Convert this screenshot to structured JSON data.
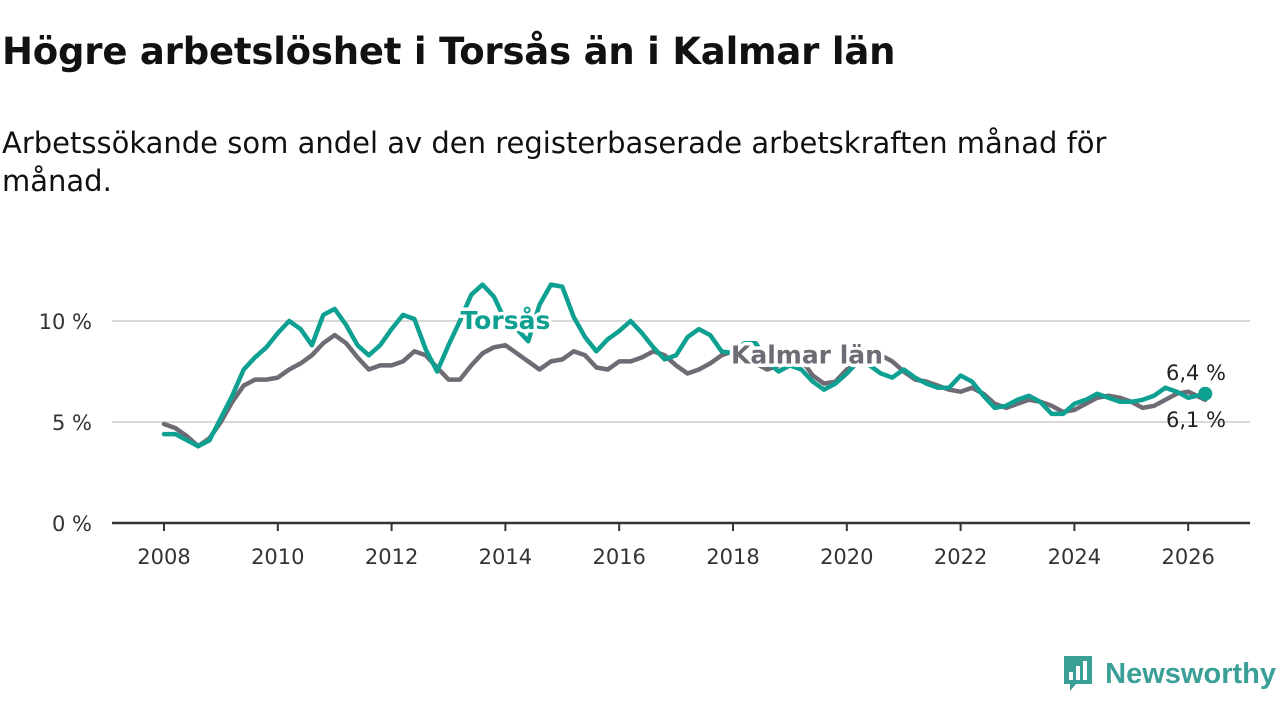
{
  "title": "Högre arbetslöshet i Torsås än i Kalmar län",
  "subtitle": "Arbetssökande som andel av den registerbaserade arbetskraften månad för månad.",
  "brand": {
    "name": "Newsworthy",
    "color": "#3a9f96"
  },
  "chart_data": {
    "type": "line",
    "ylim": [
      0,
      12
    ],
    "y_ticks": [
      {
        "value": 0,
        "label": "0 %"
      },
      {
        "value": 5,
        "label": "5 %"
      },
      {
        "value": 10,
        "label": "10 %"
      }
    ],
    "xlim": [
      2008.0,
      2026.3
    ],
    "x_ticks": [
      {
        "value": 2008,
        "label": "2008"
      },
      {
        "value": 2010,
        "label": "2010"
      },
      {
        "value": 2012,
        "label": "2012"
      },
      {
        "value": 2014,
        "label": "2014"
      },
      {
        "value": 2016,
        "label": "2016"
      },
      {
        "value": 2018,
        "label": "2018"
      },
      {
        "value": 2020,
        "label": "2020"
      },
      {
        "value": 2022,
        "label": "2022"
      },
      {
        "value": 2024,
        "label": "2024"
      },
      {
        "value": 2026,
        "label": "2026"
      }
    ],
    "grid": true,
    "series": [
      {
        "name": "Kalmar län",
        "color": "#6f6b74",
        "label_at": [
          2019.3,
          7.9
        ],
        "end_label": "6,1 %",
        "points": [
          [
            2008.0,
            4.9
          ],
          [
            2008.2,
            4.7
          ],
          [
            2008.4,
            4.3
          ],
          [
            2008.6,
            3.8
          ],
          [
            2008.8,
            4.2
          ],
          [
            2009.0,
            5.0
          ],
          [
            2009.2,
            6.0
          ],
          [
            2009.4,
            6.8
          ],
          [
            2009.6,
            7.1
          ],
          [
            2009.8,
            7.1
          ],
          [
            2010.0,
            7.2
          ],
          [
            2010.2,
            7.6
          ],
          [
            2010.4,
            7.9
          ],
          [
            2010.6,
            8.3
          ],
          [
            2010.8,
            8.9
          ],
          [
            2011.0,
            9.3
          ],
          [
            2011.2,
            8.9
          ],
          [
            2011.4,
            8.2
          ],
          [
            2011.6,
            7.6
          ],
          [
            2011.8,
            7.8
          ],
          [
            2012.0,
            7.8
          ],
          [
            2012.2,
            8.0
          ],
          [
            2012.4,
            8.5
          ],
          [
            2012.6,
            8.3
          ],
          [
            2012.8,
            7.7
          ],
          [
            2013.0,
            7.1
          ],
          [
            2013.2,
            7.1
          ],
          [
            2013.4,
            7.8
          ],
          [
            2013.6,
            8.4
          ],
          [
            2013.8,
            8.7
          ],
          [
            2014.0,
            8.8
          ],
          [
            2014.2,
            8.4
          ],
          [
            2014.4,
            8.0
          ],
          [
            2014.6,
            7.6
          ],
          [
            2014.8,
            8.0
          ],
          [
            2015.0,
            8.1
          ],
          [
            2015.2,
            8.5
          ],
          [
            2015.4,
            8.3
          ],
          [
            2015.6,
            7.7
          ],
          [
            2015.8,
            7.6
          ],
          [
            2016.0,
            8.0
          ],
          [
            2016.2,
            8.0
          ],
          [
            2016.4,
            8.2
          ],
          [
            2016.6,
            8.5
          ],
          [
            2016.8,
            8.3
          ],
          [
            2017.0,
            7.8
          ],
          [
            2017.2,
            7.4
          ],
          [
            2017.4,
            7.6
          ],
          [
            2017.6,
            7.9
          ],
          [
            2017.8,
            8.3
          ],
          [
            2018.0,
            8.5
          ],
          [
            2018.2,
            8.2
          ],
          [
            2018.4,
            7.9
          ],
          [
            2018.6,
            7.6
          ],
          [
            2018.8,
            7.8
          ],
          [
            2019.0,
            8.2
          ],
          [
            2019.2,
            8.1
          ],
          [
            2019.4,
            7.3
          ],
          [
            2019.6,
            6.9
          ],
          [
            2019.8,
            7.0
          ],
          [
            2020.0,
            7.6
          ],
          [
            2020.2,
            8.0
          ],
          [
            2020.4,
            8.2
          ],
          [
            2020.6,
            8.3
          ],
          [
            2020.8,
            8.0
          ],
          [
            2021.0,
            7.5
          ],
          [
            2021.2,
            7.1
          ],
          [
            2021.4,
            7.0
          ],
          [
            2021.6,
            6.8
          ],
          [
            2021.8,
            6.6
          ],
          [
            2022.0,
            6.5
          ],
          [
            2022.2,
            6.7
          ],
          [
            2022.4,
            6.4
          ],
          [
            2022.6,
            5.9
          ],
          [
            2022.8,
            5.7
          ],
          [
            2023.0,
            5.9
          ],
          [
            2023.2,
            6.1
          ],
          [
            2023.4,
            6.0
          ],
          [
            2023.6,
            5.8
          ],
          [
            2023.8,
            5.5
          ],
          [
            2024.0,
            5.6
          ],
          [
            2024.2,
            5.9
          ],
          [
            2024.4,
            6.2
          ],
          [
            2024.6,
            6.3
          ],
          [
            2024.8,
            6.2
          ],
          [
            2025.0,
            6.0
          ],
          [
            2025.2,
            5.7
          ],
          [
            2025.4,
            5.8
          ],
          [
            2025.6,
            6.1
          ],
          [
            2025.8,
            6.4
          ],
          [
            2026.0,
            6.5
          ],
          [
            2026.3,
            6.1
          ]
        ]
      },
      {
        "name": "Torsås",
        "color": "#0ea091",
        "label_at": [
          2014.0,
          9.6
        ],
        "end_label": "6,4 %",
        "points": [
          [
            2008.0,
            4.4
          ],
          [
            2008.2,
            4.4
          ],
          [
            2008.4,
            4.1
          ],
          [
            2008.6,
            3.8
          ],
          [
            2008.8,
            4.1
          ],
          [
            2009.0,
            5.2
          ],
          [
            2009.2,
            6.3
          ],
          [
            2009.4,
            7.6
          ],
          [
            2009.6,
            8.2
          ],
          [
            2009.8,
            8.7
          ],
          [
            2010.0,
            9.4
          ],
          [
            2010.2,
            10.0
          ],
          [
            2010.4,
            9.6
          ],
          [
            2010.6,
            8.8
          ],
          [
            2010.8,
            10.3
          ],
          [
            2011.0,
            10.6
          ],
          [
            2011.2,
            9.8
          ],
          [
            2011.4,
            8.8
          ],
          [
            2011.6,
            8.3
          ],
          [
            2011.8,
            8.8
          ],
          [
            2012.0,
            9.6
          ],
          [
            2012.2,
            10.3
          ],
          [
            2012.4,
            10.1
          ],
          [
            2012.6,
            8.6
          ],
          [
            2012.8,
            7.5
          ],
          [
            2013.0,
            8.8
          ],
          [
            2013.2,
            10.0
          ],
          [
            2013.4,
            11.3
          ],
          [
            2013.6,
            11.8
          ],
          [
            2013.8,
            11.2
          ],
          [
            2014.0,
            10.0
          ],
          [
            2014.2,
            9.6
          ],
          [
            2014.4,
            9.0
          ],
          [
            2014.6,
            10.8
          ],
          [
            2014.8,
            11.8
          ],
          [
            2015.0,
            11.7
          ],
          [
            2015.2,
            10.2
          ],
          [
            2015.4,
            9.2
          ],
          [
            2015.6,
            8.5
          ],
          [
            2015.8,
            9.1
          ],
          [
            2016.0,
            9.5
          ],
          [
            2016.2,
            10.0
          ],
          [
            2016.4,
            9.4
          ],
          [
            2016.6,
            8.7
          ],
          [
            2016.8,
            8.1
          ],
          [
            2017.0,
            8.3
          ],
          [
            2017.2,
            9.2
          ],
          [
            2017.4,
            9.6
          ],
          [
            2017.6,
            9.3
          ],
          [
            2017.8,
            8.5
          ],
          [
            2018.0,
            8.4
          ],
          [
            2018.2,
            8.9
          ],
          [
            2018.4,
            8.9
          ],
          [
            2018.6,
            8.0
          ],
          [
            2018.8,
            7.5
          ],
          [
            2019.0,
            7.8
          ],
          [
            2019.2,
            7.6
          ],
          [
            2019.4,
            7.0
          ],
          [
            2019.6,
            6.6
          ],
          [
            2019.8,
            6.9
          ],
          [
            2020.0,
            7.4
          ],
          [
            2020.2,
            8.0
          ],
          [
            2020.4,
            7.8
          ],
          [
            2020.6,
            7.4
          ],
          [
            2020.8,
            7.2
          ],
          [
            2021.0,
            7.6
          ],
          [
            2021.2,
            7.2
          ],
          [
            2021.4,
            6.9
          ],
          [
            2021.6,
            6.7
          ],
          [
            2021.8,
            6.7
          ],
          [
            2022.0,
            7.3
          ],
          [
            2022.2,
            7.0
          ],
          [
            2022.4,
            6.3
          ],
          [
            2022.6,
            5.7
          ],
          [
            2022.8,
            5.8
          ],
          [
            2023.0,
            6.1
          ],
          [
            2023.2,
            6.3
          ],
          [
            2023.4,
            6.0
          ],
          [
            2023.6,
            5.4
          ],
          [
            2023.8,
            5.4
          ],
          [
            2024.0,
            5.9
          ],
          [
            2024.2,
            6.1
          ],
          [
            2024.4,
            6.4
          ],
          [
            2024.6,
            6.2
          ],
          [
            2024.8,
            6.0
          ],
          [
            2025.0,
            6.0
          ],
          [
            2025.2,
            6.1
          ],
          [
            2025.4,
            6.3
          ],
          [
            2025.6,
            6.7
          ],
          [
            2025.8,
            6.5
          ],
          [
            2026.0,
            6.2
          ],
          [
            2026.3,
            6.4
          ]
        ]
      }
    ]
  }
}
